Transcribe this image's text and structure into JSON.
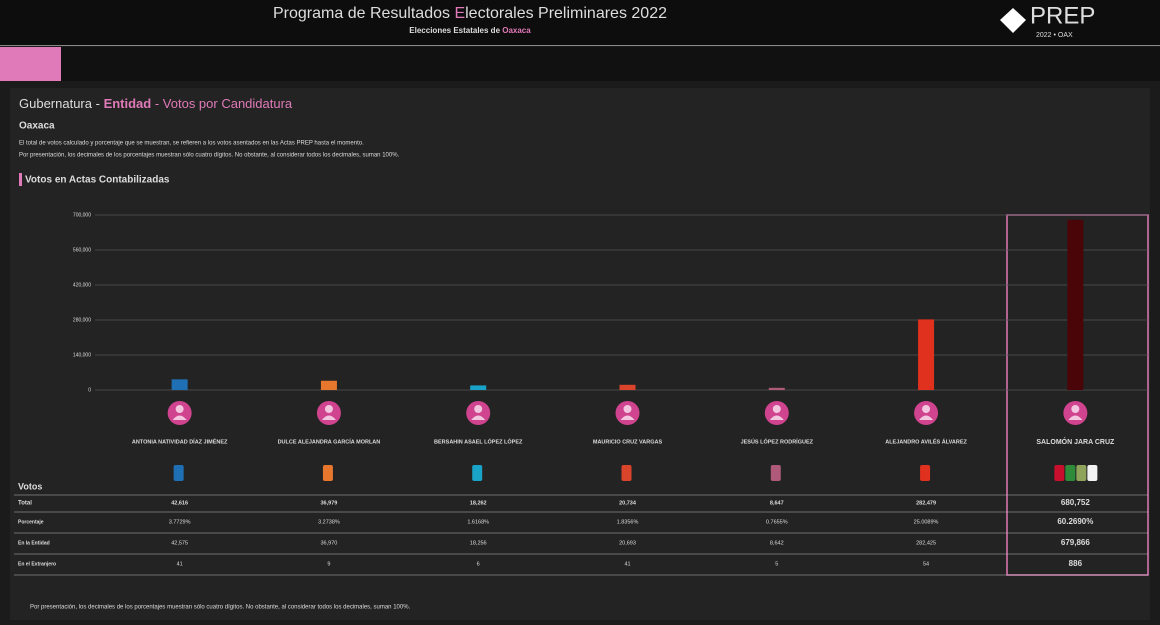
{
  "header": {
    "title_parts": [
      "Programa de Resultados ",
      "E",
      "lectorales Preliminares 2022"
    ],
    "subtitle_parts": [
      "Elecciones Estatales de ",
      "Oaxaca"
    ],
    "logo": "PREP",
    "logo_sub": "2022 • OAX"
  },
  "breadcrumb": [
    "Gubernatura",
    " - ",
    "Entidad",
    " - ",
    "Votos por Candidatura"
  ],
  "entity": "Oaxaca",
  "notes": [
    "El total de votos calculado y porcentaje que se muestran, se refieren a los votos asentados en las Actas PREP hasta el momento.",
    "Por presentación, los decimales de los porcentajes muestran sólo cuatro dígitos. No obstante, al considerar todos los decimales, suman 100%."
  ],
  "section_title": "Votos en Actas Contabilizadas",
  "chart_data": {
    "type": "bar",
    "categories": [
      "ANTONIA NATIVIDAD DÍAZ JIMÉNEZ",
      "DULCE ALEJANDRA GARCÍA MORLAN",
      "BERSAHIN ASAEL LÓPEZ LÓPEZ",
      "MAURICIO CRUZ VARGAS",
      "JESÚS LÓPEZ RODRÍGUEZ",
      "ALEJANDRO AVILÉS ÁLVAREZ",
      "SALOMÓN JARA CRUZ"
    ],
    "values": [
      42616,
      36979,
      18262,
      20734,
      8647,
      282479,
      680752
    ],
    "value_labels": [
      "42,616",
      "36,979",
      "18,262",
      "20,734",
      "8,647",
      "282,479",
      "680,752"
    ],
    "colors": [
      "#1f6fb5",
      "#e8772e",
      "#1aa3c9",
      "#d9442a",
      "#b05a7a",
      "#e0301e",
      "#4a0508"
    ],
    "ylim": [
      0,
      700000
    ],
    "yticks": [
      0,
      {
        "value": 140000,
        "label": "140,000"
      },
      {
        "value": 280000,
        "label": "280,000"
      },
      {
        "value": 420000,
        "label": "420,000"
      },
      {
        "value": 560000,
        "label": "560,000"
      },
      {
        "value": 700000,
        "label": "700,000"
      }
    ],
    "grid": true
  },
  "table": {
    "title": "Votos",
    "total_label": "Total",
    "rows": [
      {
        "label": "Porcentaje",
        "cells": [
          "3.7729%",
          "3.2738%",
          "1.6168%",
          "1.8356%",
          "0.7655%",
          "25.0089%",
          "60.2690%"
        ]
      },
      {
        "label": "En la Entidad",
        "cells": [
          "42,575",
          "36,970",
          "18,256",
          "20,693",
          "8,642",
          "282,425",
          "679,866"
        ]
      },
      {
        "label": "En el Extranjero",
        "cells": [
          "41",
          "9",
          "6",
          "41",
          "5",
          "54",
          "886"
        ]
      }
    ]
  },
  "footer_note": "Por presentación, los decimales de los porcentajes muestran sólo cuatro dígitos. No obstante, al considerar todos los decimales, suman 100%."
}
